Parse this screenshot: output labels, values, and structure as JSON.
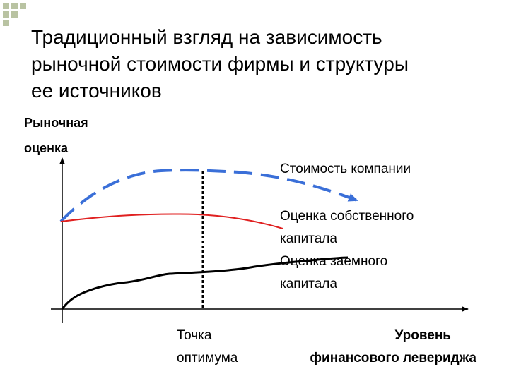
{
  "title_lines": [
    "Традиционный взгляд на зависимость",
    "рыночной стоимости фирмы и структуры",
    "ее источников"
  ],
  "y_axis_label": [
    "Рыночная",
    "оценка"
  ],
  "series_labels": {
    "company_value": [
      "Стоимость компании"
    ],
    "equity_value": [
      "Оценка собственного",
      "капитала"
    ],
    "debt_value": [
      "Оценка заемного",
      "капитала"
    ]
  },
  "optimum_label": [
    "Точка",
    "оптимума"
  ],
  "x_axis_label": [
    "Уровень",
    "финансового левериджа"
  ],
  "colors": {
    "company_value": "#3a6fd8",
    "equity_value": "#e02020",
    "debt_value": "#000000",
    "decor_squares": "#b9c3a2"
  }
}
